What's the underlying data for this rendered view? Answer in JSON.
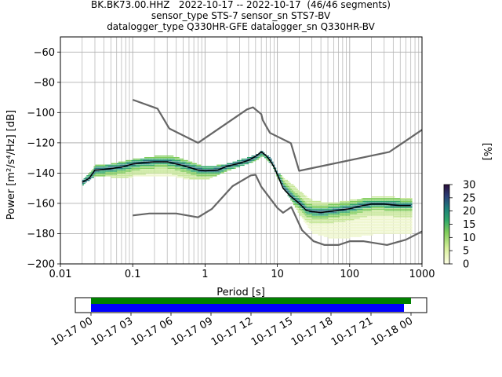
{
  "title_lines": [
    "BK.BK73.00.HHZ   2022-10-17 -- 2022-10-17  (46/46 segments)",
    "sensor_type STS-7 sensor_sn STS7-BV",
    "datalogger_type Q330HR-GFE datalogger_sn Q330HR-BV"
  ],
  "colorbar": {
    "label": "[%]",
    "ticks": [
      "0",
      "5",
      "10",
      "15",
      "20",
      "25",
      "30"
    ],
    "range": [
      0,
      30
    ]
  },
  "timeline": {
    "ticks": [
      "10-17 00",
      "10-17 03",
      "10-17 06",
      "10-17 09",
      "10-17 12",
      "10-17 15",
      "10-17 18",
      "10-17 21",
      "10-18 00"
    ],
    "bar_colors": {
      "data": "#008000",
      "gaps": "#0000ff"
    }
  },
  "chart_data": {
    "type": "line",
    "xlabel": "Period [s]",
    "ylabel": "Power [m²/s⁴/Hz] [dB]",
    "xscale": "log",
    "xlim": [
      0.01,
      1000
    ],
    "ylim": [
      -200,
      -50
    ],
    "xtick_labels": [
      "0.01",
      "0.1",
      "1",
      "10",
      "100",
      "1000"
    ],
    "ytick_labels": [
      "−60",
      "−80",
      "−100",
      "−120",
      "−140",
      "−160",
      "−180",
      "−200"
    ],
    "grid": true,
    "series": [
      {
        "role": "noise-model-upper",
        "color": "#666666",
        "x": [
          0.1,
          0.22,
          0.32,
          0.8,
          3.8,
          4.6,
          6.0,
          6.3,
          7.9,
          15.4,
          20.0,
          354.8,
          1000
        ],
        "y": [
          -91.5,
          -97.4,
          -110.5,
          -120.0,
          -97.9,
          -96.5,
          -101.0,
          -105.1,
          -113.4,
          -120.3,
          -138.5,
          -126.0,
          -111.4
        ]
      },
      {
        "role": "noise-model-lower",
        "color": "#666666",
        "x": [
          0.1,
          0.17,
          0.4,
          0.8,
          1.24,
          2.4,
          4.3,
          5.0,
          6.0,
          10.0,
          12.0,
          15.6,
          21.9,
          31.6,
          45.0,
          70.0,
          101.0,
          154.0,
          328.0,
          600.0,
          1000
        ],
        "y": [
          -168.0,
          -166.7,
          -166.7,
          -169.2,
          -163.7,
          -148.6,
          -141.5,
          -141.1,
          -149.0,
          -163.0,
          -166.2,
          -162.4,
          -177.7,
          -185.0,
          -187.5,
          -187.5,
          -185.0,
          -185.0,
          -187.5,
          -184.0,
          -178.5
        ]
      },
      {
        "role": "mode",
        "color": "#000000",
        "x": [
          0.02,
          0.025,
          0.03,
          0.04,
          0.05,
          0.07,
          0.1,
          0.15,
          0.2,
          0.3,
          0.5,
          0.8,
          1.0,
          1.5,
          2.0,
          3.0,
          4.0,
          5.0,
          6.0,
          7.0,
          8.0,
          9.0,
          10.0,
          12.0,
          15.0,
          20.0,
          25.0,
          30.0,
          40.0,
          50.0,
          70.0,
          100.0,
          150.0,
          200.0,
          300.0,
          500.0,
          700.0
        ],
        "y": [
          -146.0,
          -143.5,
          -138.0,
          -137.5,
          -137.0,
          -136.0,
          -134.0,
          -133.0,
          -132.5,
          -132.5,
          -135.0,
          -138.0,
          -138.5,
          -138.0,
          -135.5,
          -133.5,
          -131.5,
          -129.0,
          -126.0,
          -128.5,
          -132.0,
          -136.0,
          -141.0,
          -150.0,
          -155.0,
          -160.0,
          -164.5,
          -165.5,
          -166.0,
          -165.5,
          -164.5,
          -163.5,
          -161.5,
          -160.5,
          -160.5,
          -161.5,
          -161.5
        ]
      },
      {
        "role": "psd-density-upper-envelope",
        "x": [
          0.02,
          0.03,
          0.05,
          0.1,
          0.2,
          0.3,
          0.5,
          1.0,
          2.0,
          5.0,
          6.0,
          8.0,
          10.0,
          15.0,
          20.0,
          30.0,
          50.0,
          100.0,
          200.0,
          400.0,
          700.0
        ],
        "y": [
          -145.0,
          -135.0,
          -134.0,
          -131.0,
          -129.0,
          -128.0,
          -131.0,
          -136.0,
          -134.0,
          -128.0,
          -125.0,
          -131.0,
          -140.0,
          -147.0,
          -152.0,
          -158.0,
          -160.0,
          -158.0,
          -156.0,
          -156.0,
          -157.0
        ]
      },
      {
        "role": "psd-density-lower-envelope",
        "x": [
          0.02,
          0.03,
          0.05,
          0.1,
          0.2,
          0.3,
          0.5,
          1.0,
          2.0,
          5.0,
          6.0,
          8.0,
          10.0,
          15.0,
          20.0,
          30.0,
          50.0,
          100.0,
          200.0,
          400.0,
          700.0
        ],
        "y": [
          -148.0,
          -142.0,
          -143.0,
          -143.0,
          -142.0,
          -142.0,
          -144.0,
          -145.0,
          -139.0,
          -132.0,
          -129.0,
          -134.0,
          -144.0,
          -158.0,
          -168.0,
          -180.0,
          -183.0,
          -183.0,
          -181.0,
          -180.0,
          -181.0
        ]
      }
    ]
  }
}
